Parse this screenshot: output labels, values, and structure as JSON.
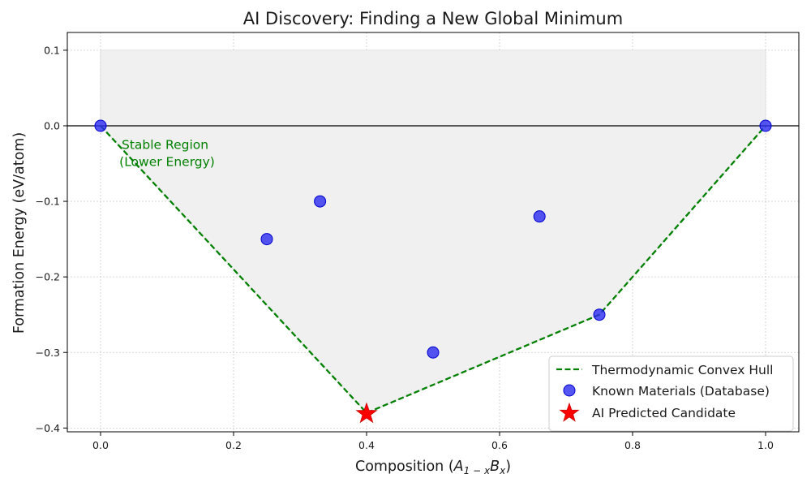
{
  "chart_data": {
    "type": "scatter",
    "title": "AI Discovery: Finding a New Global Minimum",
    "xlabel": {
      "main": "Composition (",
      "a": "A",
      "a_sub": "1 − x",
      "b": "B",
      "b_sub": "x",
      "close": ")"
    },
    "ylabel": "Formation Energy (eV/atom)",
    "xlim": [
      -0.05,
      1.05
    ],
    "ylim": [
      -0.405,
      0.1235
    ],
    "xticks": [
      0.0,
      0.2,
      0.4,
      0.6,
      0.8,
      1.0
    ],
    "xtick_labels": [
      "0.0",
      "0.2",
      "0.4",
      "0.6",
      "0.8",
      "1.0"
    ],
    "yticks": [
      -0.4,
      -0.3,
      -0.2,
      -0.1,
      0.0,
      0.1
    ],
    "ytick_labels": [
      "−0.4",
      "−0.3",
      "−0.2",
      "−0.1",
      "0.0",
      "0.1"
    ],
    "grid": true,
    "zero_line": 0.0,
    "shaded_region": {
      "top": 0.1,
      "boundary_x": [
        0.0,
        0.4,
        0.75,
        1.0
      ],
      "boundary_y": [
        0.0,
        -0.38,
        -0.25,
        0.0
      ],
      "color": "#f0f0f0"
    },
    "annotation": {
      "lines": [
        "Stable Region",
        "(Lower Energy)"
      ],
      "x": 0.1,
      "y": -0.035,
      "color": "#008000"
    },
    "series": [
      {
        "name": "Thermodynamic Convex Hull",
        "kind": "line",
        "style": "dashed",
        "color": "#008000",
        "x": [
          0.0,
          0.4,
          0.75,
          1.0
        ],
        "y": [
          0.0,
          -0.38,
          -0.25,
          0.0
        ]
      },
      {
        "name": "Known Materials (Database)",
        "kind": "scatter",
        "color": "#2b2bf0",
        "x": [
          0.0,
          0.25,
          0.33,
          0.5,
          0.66,
          0.75,
          1.0
        ],
        "y": [
          0.0,
          -0.15,
          -0.1,
          -0.3,
          -0.12,
          -0.25,
          0.0
        ]
      },
      {
        "name": "AI Predicted Candidate",
        "kind": "star",
        "color": "#ff0000",
        "x": [
          0.4
        ],
        "y": [
          -0.38
        ]
      }
    ],
    "legend": {
      "position": "lower-right"
    }
  }
}
